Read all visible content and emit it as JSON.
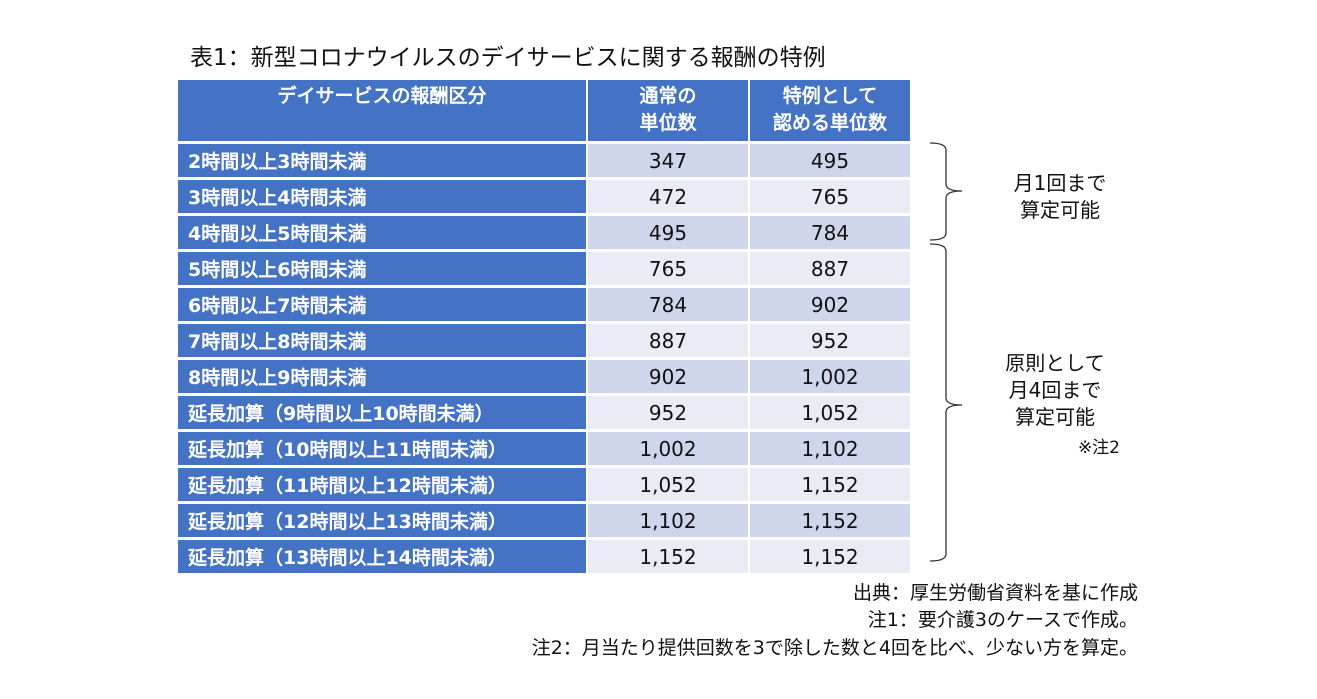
{
  "title": "表1：新型コロナウイルスのデイサービスに関する報酬の特例",
  "table": {
    "headers": [
      "デイサービスの報酬区分",
      "通常の\n単位数",
      "特例として\n認める単位数"
    ],
    "header_lines": [
      [
        "デイサービスの報酬区分"
      ],
      [
        "通常の",
        "単位数"
      ],
      [
        "特例として",
        "認める単位数"
      ]
    ],
    "rows": [
      [
        "2時間以上3時間未満",
        "347",
        "495"
      ],
      [
        "3時間以上4時間未満",
        "472",
        "765"
      ],
      [
        "4時間以上5時間未満",
        "495",
        "784"
      ],
      [
        "5時間以上6時間未満",
        "765",
        "887"
      ],
      [
        "6時間以上7時間未満",
        "784",
        "902"
      ],
      [
        "7時間以上8時間未満",
        "887",
        "952"
      ],
      [
        "8時間以上9時間未満",
        "902",
        "1,002"
      ],
      [
        "延長加算（9時間以上10時間未満）",
        "952",
        "1,052"
      ],
      [
        "延長加算（10時間以上11時間未満）",
        "1,002",
        "1,102"
      ],
      [
        "延長加算（11時間以上12時間未満）",
        "1,052",
        "1,152"
      ],
      [
        "延長加算（12時間以上13時間未満）",
        "1,102",
        "1,152"
      ],
      [
        "延長加算（13時間以上14時間未満）",
        "1,152",
        "1,152"
      ]
    ]
  },
  "annotations": {
    "group1": [
      "月1回まで",
      "算定可能"
    ],
    "group2": [
      "原則として",
      "月4回まで",
      "算定可能"
    ],
    "group2_note": "※注2"
  },
  "notes": [
    "出典：厚生労働省資料を基に作成",
    "注1：要介護3のケースで作成。",
    "注2：月当たり提供回数を3で除した数と4回を比べ、少ない方を算定。"
  ],
  "colors": {
    "header": "#4472C4",
    "row_odd": "#CFD5EA",
    "row_even": "#E9EBF5"
  }
}
